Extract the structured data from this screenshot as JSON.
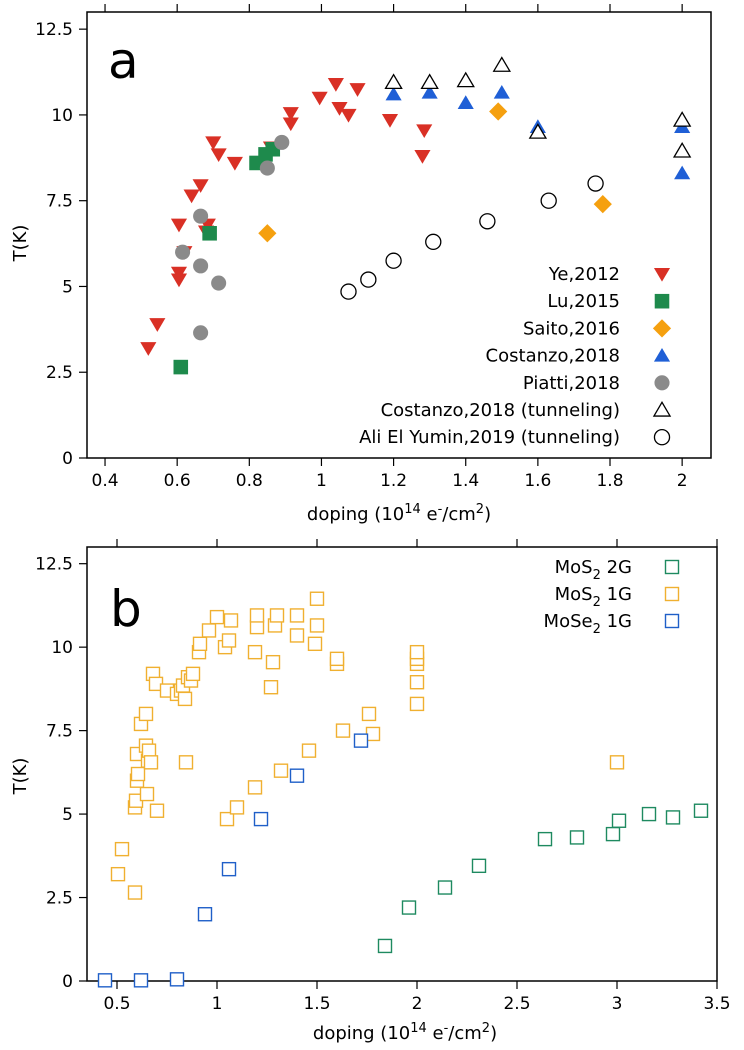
{
  "figure": {
    "y_label": "T(K)",
    "x_label_base": "doping (10",
    "x_label_exp": "14",
    "x_label_mid": " e",
    "x_label_sup_minus": "-",
    "x_label_unit": "/cm",
    "x_label_sq": "2",
    "x_label_close": ")"
  },
  "chart_data": [
    {
      "panel": "a",
      "type": "scatter",
      "xlabel": "doping (10^14 e-/cm^2)",
      "ylabel": "T(K)",
      "xlim": [
        0.35,
        2.08
      ],
      "ylim": [
        0,
        13
      ],
      "xticks": [
        0.4,
        0.6,
        0.8,
        1,
        1.2,
        1.4,
        1.6,
        1.8,
        2
      ],
      "xtick_labels": [
        "0.4",
        "0.6",
        "0.8",
        "1",
        "1.2",
        "1.4",
        "1.6",
        "1.8",
        "2"
      ],
      "yticks": [
        0,
        2.5,
        5,
        7.5,
        10,
        12.5
      ],
      "ytick_labels": [
        "0",
        "2.5",
        "5",
        "7.5",
        "10",
        "12.5"
      ],
      "legend_position": "bottom-right",
      "series": [
        {
          "name": "Ye,2012",
          "marker": "triangle-down",
          "filled": true,
          "color": "#d93025",
          "points": [
            [
              0.52,
              3.2
            ],
            [
              0.545,
              3.9
            ],
            [
              0.605,
              5.2
            ],
            [
              0.605,
              5.4
            ],
            [
              0.62,
              6.0
            ],
            [
              0.605,
              6.8
            ],
            [
              0.64,
              7.65
            ],
            [
              0.665,
              7.95
            ],
            [
              0.68,
              6.6
            ],
            [
              0.685,
              6.8
            ],
            [
              0.7,
              9.2
            ],
            [
              0.715,
              8.85
            ],
            [
              0.76,
              8.6
            ],
            [
              0.86,
              9.05
            ],
            [
              0.915,
              9.75
            ],
            [
              0.915,
              10.05
            ],
            [
              0.995,
              10.5
            ],
            [
              1.04,
              10.9
            ],
            [
              1.05,
              10.2
            ],
            [
              1.075,
              10.0
            ],
            [
              1.1,
              10.75
            ],
            [
              1.19,
              9.85
            ],
            [
              1.28,
              8.8
            ],
            [
              1.285,
              9.55
            ]
          ]
        },
        {
          "name": "Lu,2015",
          "marker": "square",
          "filled": true,
          "color": "#1e8a4c",
          "points": [
            [
              0.61,
              2.65
            ],
            [
              0.69,
              6.55
            ],
            [
              0.82,
              8.6
            ],
            [
              0.845,
              8.85
            ],
            [
              0.865,
              9.0
            ]
          ]
        },
        {
          "name": "Saito,2016",
          "marker": "diamond",
          "filled": true,
          "color": "#f5a00f",
          "points": [
            [
              0.85,
              6.55
            ],
            [
              1.49,
              10.1
            ],
            [
              1.78,
              7.4
            ]
          ]
        },
        {
          "name": "Costanzo,2018",
          "marker": "triangle-up",
          "filled": true,
          "color": "#1f5fd6",
          "points": [
            [
              1.2,
              10.6
            ],
            [
              1.3,
              10.65
            ],
            [
              1.4,
              10.35
            ],
            [
              1.5,
              10.65
            ],
            [
              1.6,
              9.65
            ],
            [
              2.0,
              9.65
            ],
            [
              2.0,
              8.3
            ]
          ]
        },
        {
          "name": "Piatti,2018",
          "marker": "circle",
          "filled": true,
          "color": "#8a8a8a",
          "points": [
            [
              0.615,
              6.0
            ],
            [
              0.665,
              7.05
            ],
            [
              0.665,
              5.6
            ],
            [
              0.665,
              3.65
            ],
            [
              0.715,
              5.1
            ],
            [
              0.85,
              8.45
            ],
            [
              0.89,
              9.2
            ]
          ]
        },
        {
          "name": "Costanzo,2018 (tunneling)",
          "marker": "triangle-up",
          "filled": false,
          "color": "#000000",
          "points": [
            [
              1.2,
              10.95
            ],
            [
              1.3,
              10.95
            ],
            [
              1.4,
              11.0
            ],
            [
              1.5,
              11.45
            ],
            [
              1.6,
              9.5
            ],
            [
              2.0,
              9.85
            ],
            [
              2.0,
              8.95
            ]
          ]
        },
        {
          "name": "Ali El Yumin,2019 (tunneling)",
          "marker": "circle",
          "filled": false,
          "color": "#000000",
          "points": [
            [
              1.075,
              4.85
            ],
            [
              1.13,
              5.2
            ],
            [
              1.2,
              5.75
            ],
            [
              1.31,
              6.3
            ],
            [
              1.46,
              6.9
            ],
            [
              1.63,
              7.5
            ],
            [
              1.76,
              8.0
            ]
          ]
        }
      ]
    },
    {
      "panel": "b",
      "type": "scatter",
      "xlabel": "doping (10^14 e-/cm^2)",
      "ylabel": "T(K)",
      "xlim": [
        0.35,
        3.5
      ],
      "ylim": [
        0,
        13
      ],
      "xticks": [
        0.5,
        1,
        1.5,
        2,
        2.5,
        3,
        3.5
      ],
      "xtick_labels": [
        "0.5",
        "1",
        "1.5",
        "2",
        "2.5",
        "3",
        "3.5"
      ],
      "yticks": [
        0,
        2.5,
        5,
        7.5,
        10,
        12.5
      ],
      "ytick_labels": [
        "0",
        "2.5",
        "5",
        "7.5",
        "10",
        "12.5"
      ],
      "legend_position": "top-right",
      "series": [
        {
          "name": "MoS2 2G",
          "name_base": "MoS",
          "name_sub": "2",
          "name_rest": " 2G",
          "marker": "square",
          "filled": false,
          "color": "#1e8a60",
          "points": [
            [
              1.84,
              1.05
            ],
            [
              1.96,
              2.2
            ],
            [
              2.14,
              2.8
            ],
            [
              2.31,
              3.45
            ],
            [
              2.64,
              4.25
            ],
            [
              2.8,
              4.3
            ],
            [
              2.98,
              4.4
            ],
            [
              3.01,
              4.8
            ],
            [
              3.16,
              5.0
            ],
            [
              3.28,
              4.9
            ],
            [
              3.42,
              5.1
            ]
          ]
        },
        {
          "name": "MoS2 1G",
          "name_base": "MoS",
          "name_sub": "2",
          "name_rest": " 1G",
          "marker": "square",
          "filled": false,
          "color": "#f0b030",
          "points": [
            [
              0.505,
              3.2
            ],
            [
              0.525,
              3.95
            ],
            [
              0.59,
              2.65
            ],
            [
              0.59,
              5.2
            ],
            [
              0.595,
              5.4
            ],
            [
              0.6,
              6.0
            ],
            [
              0.6,
              6.8
            ],
            [
              0.605,
              6.2
            ],
            [
              0.62,
              7.7
            ],
            [
              0.645,
              8.0
            ],
            [
              0.65,
              5.6
            ],
            [
              0.645,
              7.05
            ],
            [
              0.655,
              6.6
            ],
            [
              0.66,
              6.9
            ],
            [
              0.67,
              6.55
            ],
            [
              0.68,
              9.2
            ],
            [
              0.695,
              8.9
            ],
            [
              0.7,
              5.1
            ],
            [
              0.75,
              8.7
            ],
            [
              0.8,
              8.6
            ],
            [
              0.82,
              8.7
            ],
            [
              0.83,
              8.85
            ],
            [
              0.84,
              8.45
            ],
            [
              0.845,
              6.55
            ],
            [
              0.855,
              9.1
            ],
            [
              0.87,
              9.0
            ],
            [
              0.88,
              9.2
            ],
            [
              0.91,
              9.85
            ],
            [
              0.915,
              10.1
            ],
            [
              0.96,
              10.5
            ],
            [
              1.0,
              10.9
            ],
            [
              1.04,
              10.0
            ],
            [
              1.05,
              4.85
            ],
            [
              1.06,
              10.2
            ],
            [
              1.07,
              10.8
            ],
            [
              1.1,
              5.2
            ],
            [
              1.19,
              5.8
            ],
            [
              1.19,
              9.85
            ],
            [
              1.2,
              10.6
            ],
            [
              1.2,
              10.95
            ],
            [
              1.27,
              8.8
            ],
            [
              1.28,
              9.55
            ],
            [
              1.29,
              10.65
            ],
            [
              1.3,
              10.95
            ],
            [
              1.32,
              6.3
            ],
            [
              1.4,
              10.35
            ],
            [
              1.4,
              10.95
            ],
            [
              1.46,
              6.9
            ],
            [
              1.49,
              10.1
            ],
            [
              1.5,
              10.65
            ],
            [
              1.5,
              11.45
            ],
            [
              1.6,
              9.5
            ],
            [
              1.6,
              9.65
            ],
            [
              1.63,
              7.5
            ],
            [
              1.76,
              8.0
            ],
            [
              1.78,
              7.4
            ],
            [
              2.0,
              8.3
            ],
            [
              2.0,
              8.95
            ],
            [
              2.0,
              9.5
            ],
            [
              2.0,
              9.65
            ],
            [
              2.0,
              9.85
            ],
            [
              3.0,
              6.55
            ]
          ]
        },
        {
          "name": "MoSe2 1G",
          "name_base": "MoSe",
          "name_sub": "2",
          "name_rest": " 1G",
          "marker": "square",
          "filled": false,
          "color": "#1f5fc8",
          "points": [
            [
              0.44,
              0.02
            ],
            [
              0.62,
              0.02
            ],
            [
              0.8,
              0.05
            ],
            [
              0.94,
              2.0
            ],
            [
              1.06,
              3.35
            ],
            [
              1.22,
              4.85
            ],
            [
              1.4,
              6.15
            ],
            [
              1.72,
              7.2
            ]
          ]
        }
      ]
    }
  ]
}
